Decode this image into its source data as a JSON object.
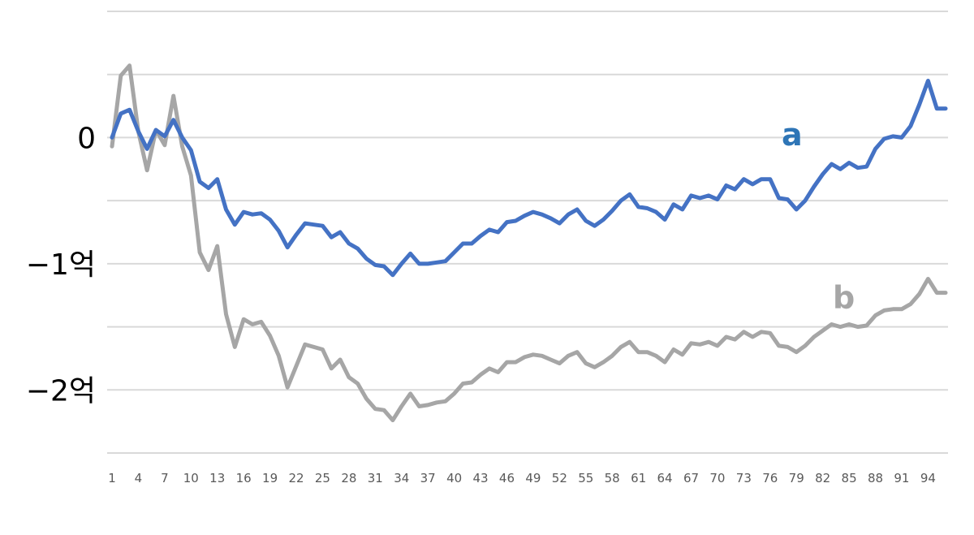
{
  "chart_data": {
    "type": "line",
    "title": "",
    "xlabel": "",
    "ylabel": "",
    "x_range": [
      1,
      96
    ],
    "ylim": [
      -2.5,
      1.0
    ],
    "gridlines": [
      1.0,
      0.5,
      0.0,
      -0.5,
      -1.0,
      -1.5,
      -2.0,
      -2.5
    ],
    "x_tick_labels": [
      "1",
      "4",
      "7",
      "10",
      "13",
      "16",
      "19",
      "22",
      "25",
      "28",
      "31",
      "34",
      "37",
      "40",
      "43",
      "46",
      "49",
      "52",
      "55",
      "58",
      "61",
      "64",
      "67",
      "70",
      "73",
      "76",
      "79",
      "82",
      "85",
      "88",
      "91",
      "94"
    ],
    "y_tick_labels": [
      {
        "value": 0,
        "text": "0"
      },
      {
        "value": -1,
        "text": "−1억"
      },
      {
        "value": -2,
        "text": "−2억"
      }
    ],
    "series": [
      {
        "label": "a",
        "color": "#4472c4",
        "label_color": "#2e75b6",
        "values": [
          0.0,
          0.19,
          0.22,
          0.05,
          -0.09,
          0.06,
          0.01,
          0.14,
          0.0,
          -0.1,
          -0.35,
          -0.4,
          -0.33,
          -0.57,
          -0.69,
          -0.59,
          -0.61,
          -0.6,
          -0.65,
          -0.74,
          -0.87,
          -0.77,
          -0.68,
          -0.69,
          -0.7,
          -0.79,
          -0.75,
          -0.84,
          -0.88,
          -0.96,
          -1.01,
          -1.02,
          -1.09,
          -1.0,
          -0.92,
          -1.0,
          -1.0,
          -0.99,
          -0.98,
          -0.91,
          -0.84,
          -0.84,
          -0.78,
          -0.73,
          -0.75,
          -0.67,
          -0.66,
          -0.62,
          -0.59,
          -0.61,
          -0.64,
          -0.68,
          -0.61,
          -0.57,
          -0.66,
          -0.7,
          -0.65,
          -0.58,
          -0.5,
          -0.45,
          -0.55,
          -0.56,
          -0.59,
          -0.65,
          -0.53,
          -0.57,
          -0.46,
          -0.48,
          -0.46,
          -0.49,
          -0.38,
          -0.41,
          -0.33,
          -0.37,
          -0.33,
          -0.33,
          -0.48,
          -0.49,
          -0.57,
          -0.5,
          -0.39,
          -0.29,
          -0.21,
          -0.25,
          -0.2,
          -0.24,
          -0.23,
          -0.09,
          -0.01,
          0.01,
          0.0,
          0.09,
          0.26,
          0.45,
          0.23,
          0.23
        ]
      },
      {
        "label": "b",
        "color": "#a6a6a6",
        "label_color": "#a6a6a6",
        "values": [
          -0.07,
          0.49,
          0.57,
          0.05,
          -0.26,
          0.06,
          -0.06,
          0.33,
          -0.07,
          -0.3,
          -0.91,
          -1.05,
          -0.86,
          -1.4,
          -1.66,
          -1.44,
          -1.48,
          -1.46,
          -1.57,
          -1.73,
          -1.98,
          -1.81,
          -1.64,
          -1.66,
          -1.68,
          -1.83,
          -1.76,
          -1.9,
          -1.95,
          -2.07,
          -2.15,
          -2.16,
          -2.24,
          -2.13,
          -2.03,
          -2.13,
          -2.12,
          -2.1,
          -2.09,
          -2.03,
          -1.95,
          -1.94,
          -1.88,
          -1.83,
          -1.86,
          -1.78,
          -1.78,
          -1.74,
          -1.72,
          -1.73,
          -1.76,
          -1.79,
          -1.73,
          -1.7,
          -1.79,
          -1.82,
          -1.78,
          -1.73,
          -1.66,
          -1.62,
          -1.7,
          -1.7,
          -1.73,
          -1.78,
          -1.68,
          -1.72,
          -1.63,
          -1.64,
          -1.62,
          -1.65,
          -1.58,
          -1.6,
          -1.54,
          -1.58,
          -1.54,
          -1.55,
          -1.65,
          -1.66,
          -1.7,
          -1.65,
          -1.58,
          -1.53,
          -1.48,
          -1.5,
          -1.48,
          -1.5,
          -1.49,
          -1.41,
          -1.37,
          -1.36,
          -1.36,
          -1.32,
          -1.24,
          -1.12,
          -1.23,
          -1.23
        ]
      }
    ],
    "series_label_positions": [
      "right of line, near value 0 at x≈78",
      "right of line, near value -1.25 at x≈84"
    ]
  }
}
